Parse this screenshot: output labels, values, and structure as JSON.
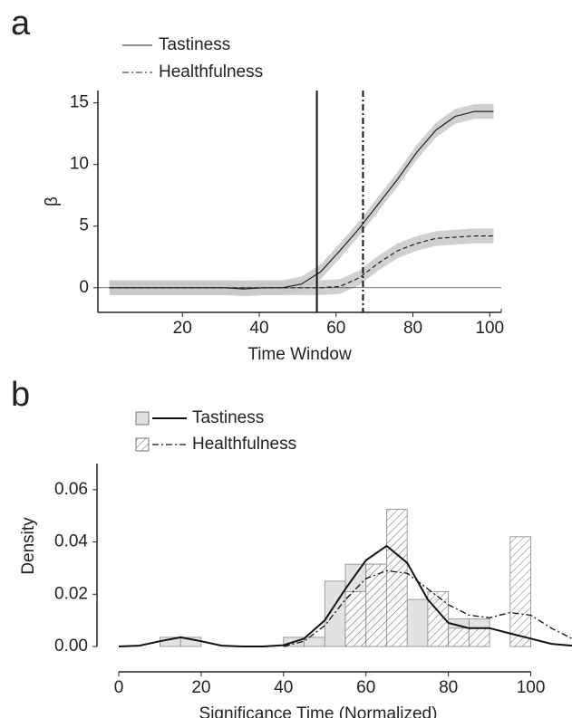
{
  "chart_data": [
    {
      "type": "line",
      "panel_label": "a",
      "xlabel": "Time Window",
      "ylabel": "β",
      "x": [
        1,
        6,
        11,
        16,
        21,
        26,
        31,
        36,
        41,
        46,
        51,
        56,
        61,
        66,
        71,
        76,
        81,
        86,
        91,
        96,
        101
      ],
      "series": [
        {
          "name": "Tastiness",
          "color": "#222222",
          "dash": "solid",
          "values": [
            0,
            0,
            0,
            0,
            0,
            0,
            0,
            -0.1,
            0,
            0,
            0.3,
            1.3,
            3,
            4.8,
            6.8,
            8.8,
            11,
            12.8,
            13.9,
            14.3,
            14.3
          ],
          "errors": [
            0.6,
            0.6,
            0.6,
            0.6,
            0.6,
            0.6,
            0.6,
            0.6,
            0.6,
            0.6,
            0.6,
            0.6,
            0.6,
            0.6,
            0.6,
            0.6,
            0.6,
            0.6,
            0.6,
            0.6,
            0.6
          ]
        },
        {
          "name": "Healthfulness",
          "color": "#222222",
          "dash": "dashdot",
          "values": [
            0,
            0,
            0,
            0,
            0,
            0,
            0,
            0,
            0,
            0,
            0,
            0,
            0.1,
            0.8,
            2,
            3,
            3.6,
            4,
            4.1,
            4.2,
            4.2
          ],
          "errors": [
            0.6,
            0.6,
            0.6,
            0.6,
            0.6,
            0.6,
            0.6,
            0.6,
            0.6,
            0.6,
            0.6,
            0.6,
            0.6,
            0.6,
            0.6,
            0.6,
            0.6,
            0.6,
            0.6,
            0.6,
            0.6
          ]
        }
      ],
      "band_color": "#c8c8c8",
      "vlines": [
        {
          "x": 55,
          "dash": "solid"
        },
        {
          "x": 67,
          "dash": "dashdot"
        }
      ],
      "hline": 0,
      "xlim": [
        -2,
        103
      ],
      "xticks": [
        20,
        40,
        60,
        80,
        100
      ],
      "ylim": [
        -2,
        16
      ],
      "yticks": [
        0,
        5,
        10,
        15
      ]
    },
    {
      "type": "histogram",
      "panel_label": "b",
      "xlabel": "Significance Time (Normalized)",
      "ylabel": "Density",
      "bins": [
        10,
        15,
        20,
        25,
        30,
        35,
        40,
        45,
        50,
        55,
        60,
        65,
        70,
        75,
        80,
        85,
        90,
        95,
        100
      ],
      "series": [
        {
          "name": "Tastiness",
          "color": "#e2e2e2",
          "hatch": false,
          "line_dash": "solid",
          "values": [
            0.0035,
            0.0035,
            0,
            0,
            0,
            0,
            0.0035,
            0.0035,
            0.025,
            0.0315,
            0.0315,
            0.039,
            0.018,
            0.018,
            0.0105,
            0.0105,
            0,
            0.0035
          ],
          "density": [
            0,
            0.0003,
            0.002,
            0.0035,
            0.002,
            0.0003,
            0,
            0,
            0.0005,
            0.003,
            0.01,
            0.022,
            0.033,
            0.0385,
            0.032,
            0.018,
            0.009,
            0.007,
            0.007,
            0.005,
            0.003,
            0.001,
            0.0003
          ]
        },
        {
          "name": "Healthfulness",
          "color": "#ffffff",
          "hatch": true,
          "line_dash": "dashdot",
          "values": [
            0,
            0,
            0,
            0,
            0,
            0,
            0,
            0,
            0,
            0.021,
            0.0315,
            0.0525,
            0,
            0.021,
            0.007,
            0.007,
            0,
            0.042
          ],
          "density": [
            null,
            null,
            null,
            null,
            null,
            null,
            null,
            null,
            0,
            0.002,
            0.008,
            0.018,
            0.026,
            0.029,
            0.028,
            0.022,
            0.016,
            0.012,
            0.011,
            0.013,
            0.012,
            0.007,
            0.003
          ]
        }
      ],
      "density_x": [
        0,
        5,
        10,
        15,
        20,
        25,
        30,
        35,
        40,
        45,
        50,
        55,
        60,
        65,
        70,
        75,
        80,
        85,
        90,
        95,
        100,
        105,
        110
      ],
      "xlim": [
        0,
        110
      ],
      "xticks": [
        0,
        20,
        40,
        60,
        80,
        100
      ],
      "ylim": [
        0,
        0.07
      ],
      "yticks": [
        {
          "value": 0,
          "label": "0.00"
        },
        {
          "value": 0.02,
          "label": "0.02"
        },
        {
          "value": 0.04,
          "label": "0.04"
        },
        {
          "value": 0.06,
          "label": "0.06"
        }
      ]
    }
  ]
}
